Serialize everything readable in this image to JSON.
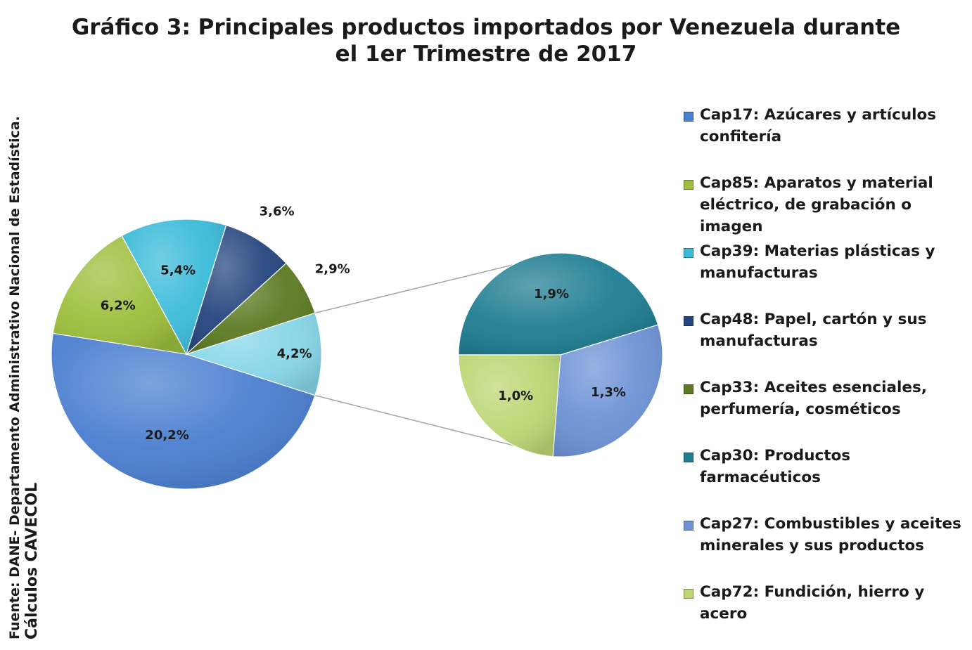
{
  "title_line1": "Gráfico 3: Principales productos importados por Venezuela durante",
  "title_line2": "el 1er Trimestre de 2017",
  "source_line1": "Fuente: DANE- Departamento Administrativo Nacional de Estadística.",
  "source_line2": "Cálculos CAVECOL",
  "chart_data": {
    "type": "pie",
    "title": "Gráfico 3: Principales productos importados por Venezuela durante el 1er Trimestre de 2017",
    "subtype": "pie-of-pie",
    "slices": [
      {
        "name": "Cap17: Azúcares y artículos confitería",
        "value": 20.2,
        "label": "20,2%",
        "color": "#4a7ed0",
        "pie": "main"
      },
      {
        "name": "Cap85: Aparatos y material eléctrico, de grabación o imagen",
        "value": 6.2,
        "label": "6,2%",
        "color": "#9dbf3c",
        "pie": "main"
      },
      {
        "name": "Cap39: Materias plásticas y manufacturas",
        "value": 5.4,
        "label": "5,4%",
        "color": "#3bbbd9",
        "pie": "main"
      },
      {
        "name": "Cap48: Papel, cartón y sus manufacturas",
        "value": 3.6,
        "label": "3,6%",
        "color": "#24457e",
        "pie": "main"
      },
      {
        "name": "Cap33: Aceites esenciales, perfumería, cosméticos",
        "value": 2.9,
        "label": "2,9%",
        "color": "#5c7a22",
        "pie": "main"
      },
      {
        "name": "Cap30: Productos farmacéuticos",
        "value": 1.9,
        "label": "1,9%",
        "color": "#1f7d92",
        "pie": "secondary"
      },
      {
        "name": "Cap27: Combustibles y aceites minerales y sus productos",
        "value": 1.3,
        "label": "1,3%",
        "color": "#6d93d6",
        "pie": "secondary"
      },
      {
        "name": "Cap72: Fundición, hierro y acero",
        "value": 1.0,
        "label": "1,0%",
        "color": "#bcd774",
        "pie": "secondary"
      }
    ],
    "other": {
      "value": 4.2,
      "label": "4,2%",
      "color": "#86d6e9"
    },
    "legend_position": "right"
  }
}
